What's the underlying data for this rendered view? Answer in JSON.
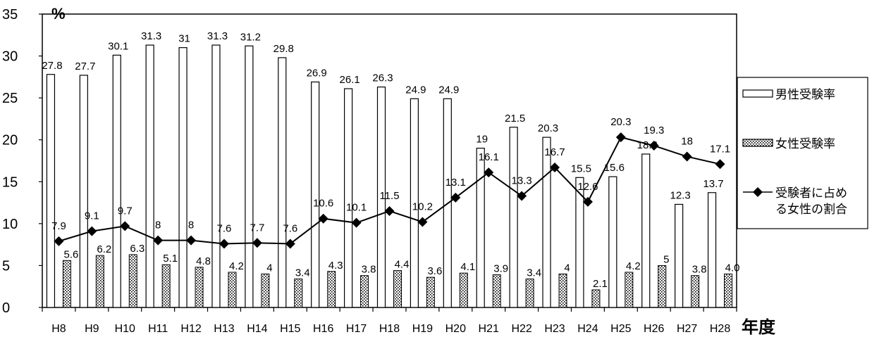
{
  "chart_data": {
    "type": "bar",
    "categories": [
      "H8",
      "H9",
      "H10",
      "H11",
      "H12",
      "H13",
      "H14",
      "H15",
      "H16",
      "H17",
      "H18",
      "H19",
      "H20",
      "H21",
      "H22",
      "H23",
      "H24",
      "H25",
      "H26",
      "H27",
      "H28"
    ],
    "series": [
      {
        "name": "男性受験率",
        "kind": "bar",
        "pattern": "hollow",
        "values": [
          27.8,
          27.7,
          30.1,
          31.3,
          31,
          31.3,
          31.2,
          29.8,
          26.9,
          26.1,
          26.3,
          24.9,
          24.9,
          19,
          21.5,
          20.3,
          15.5,
          15.6,
          18.3,
          12.3,
          13.7
        ],
        "labels": [
          "27.8",
          "27.7",
          "30.1",
          "31.3",
          "31",
          "31.3",
          "31.2",
          "29.8",
          "26.9",
          "26.1",
          "26.3",
          "24.9",
          "24.9",
          "19",
          "21.5",
          "20.3",
          "15.5",
          "15.6",
          "18.3",
          "12.3",
          "13.7"
        ]
      },
      {
        "name": "女性受験率",
        "kind": "bar",
        "pattern": "dotted",
        "values": [
          5.6,
          6.2,
          6.3,
          5.1,
          4.8,
          4.2,
          4,
          3.4,
          4.3,
          3.8,
          4.4,
          3.6,
          4.1,
          3.9,
          3.4,
          4,
          2.1,
          4.2,
          5,
          3.8,
          4.0
        ],
        "labels": [
          "5.6",
          "6.2",
          "6.3",
          "5.1",
          "4.8",
          "4.2",
          "4",
          "3.4",
          "4.3",
          "3.8",
          "4.4",
          "3.6",
          "4.1",
          "3.9",
          "3.4",
          "4",
          "2.1",
          "4.2",
          "5",
          "3.8",
          "4.0"
        ]
      },
      {
        "name": "受験者に占める女性の割合",
        "name_lines": [
          "受験者に占め",
          "る女性の割合"
        ],
        "kind": "line",
        "marker": "diamond",
        "values": [
          7.9,
          9.1,
          9.7,
          8,
          8,
          7.6,
          7.7,
          7.6,
          10.6,
          10.1,
          11.5,
          10.2,
          13.1,
          16.1,
          13.3,
          16.7,
          12.6,
          20.3,
          19.3,
          18,
          17.1
        ],
        "labels": [
          "7.9",
          "9.1",
          "9.7",
          "8",
          "8",
          "7.6",
          "7.7",
          "7.6",
          "10.6",
          "10.1",
          "11.5",
          "10.2",
          "13.1",
          "16.1",
          "13.3",
          "16.7",
          "12.6",
          "20.3",
          "19.3",
          "18",
          "17.1"
        ]
      }
    ],
    "ylim": [
      0,
      35
    ],
    "yticks": [
      0,
      5,
      10,
      15,
      20,
      25,
      30,
      35
    ],
    "ylabel": "%",
    "xlabel": "年度",
    "grid": false,
    "legend": "right",
    "colors": {
      "bar_fill": "#ffffff",
      "stroke": "#000000",
      "line": "#000000"
    }
  }
}
